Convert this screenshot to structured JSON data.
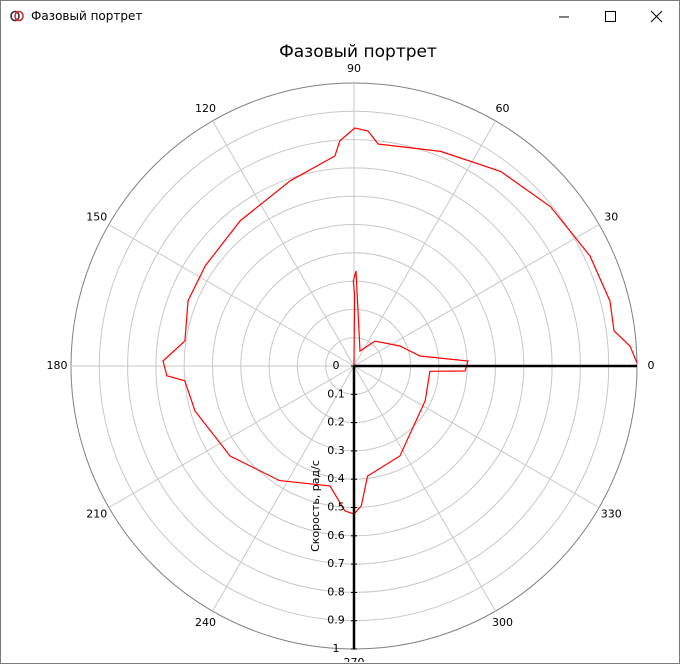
{
  "window": {
    "title": "Фазовый портрет"
  },
  "chart_data": {
    "type": "polar",
    "title": "Фазовый портрет",
    "r_label": "Скорость, рад/с",
    "rlim": [
      0,
      1
    ],
    "rticks": [
      0,
      0.1,
      0.2,
      0.3,
      0.4,
      0.5,
      0.6,
      0.7,
      0.8,
      0.9,
      1
    ],
    "thetaticks": [
      0,
      30,
      60,
      90,
      120,
      150,
      180,
      210,
      240,
      270,
      300,
      330
    ],
    "grid": true,
    "series": [
      {
        "color": "#ff0000",
        "theta": [
          0.6,
          4.1,
          7.7,
          14.2,
          25,
          39,
          53,
          68,
          83.8,
          86.6,
          89.8,
          93.6,
          95.2,
          109,
          128,
          146,
          158.6,
          171.6,
          178.5,
          183,
          185,
          195.8,
          216,
          237,
          258.7,
          266.4,
          270,
          273,
          277,
          297,
          334,
          356,
          357.4,
          2.5,
          8.6,
          23.5,
          50,
          68,
          88.8,
          90.5,
          89.5,
          0
        ],
        "r": [
          1.0,
          0.978,
          0.927,
          0.933,
          0.92,
          0.894,
          0.861,
          0.818,
          0.789,
          0.832,
          0.841,
          0.797,
          0.745,
          0.692,
          0.652,
          0.634,
          0.63,
          0.604,
          0.675,
          0.662,
          0.6,
          0.584,
          0.541,
          0.483,
          0.432,
          0.513,
          0.523,
          0.495,
          0.392,
          0.357,
          0.28,
          0.269,
          0.393,
          0.403,
          0.236,
          0.177,
          0.115,
          0.057,
          0.336,
          0.3,
          0.25,
          0
        ]
      },
      {
        "color": "#000000",
        "theta": [
          0,
          0
        ],
        "r": [
          0,
          1
        ]
      }
    ]
  }
}
